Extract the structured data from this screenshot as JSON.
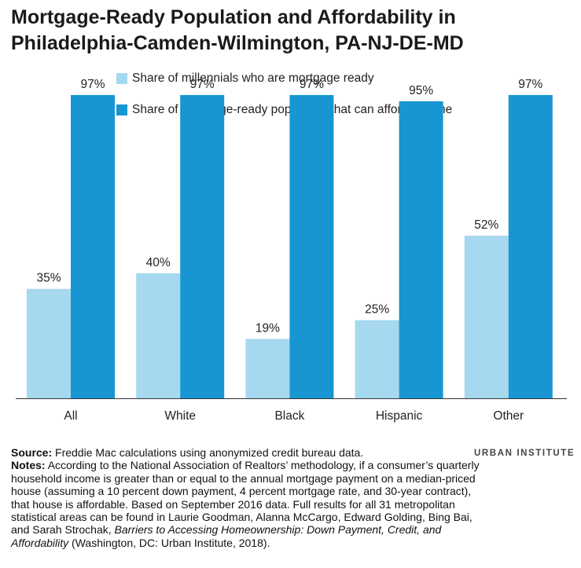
{
  "title_line1": "Mortgage-Ready Population and Affordability in",
  "title_line2": "Philadelphia-Camden-Wilmington, PA-NJ-DE-MD",
  "colors": {
    "series1": "#a6d8ef",
    "series2": "#1796d2",
    "axis": "#333333"
  },
  "chart_data": {
    "type": "bar",
    "categories": [
      "All",
      "White",
      "Black",
      "Hispanic",
      "Other"
    ],
    "series": [
      {
        "name": "Share of millennials who are mortgage ready",
        "values": [
          35,
          40,
          19,
          25,
          52
        ],
        "labels": [
          "35%",
          "40%",
          "19%",
          "25%",
          "52%"
        ]
      },
      {
        "name": "Share of mortgage-ready population that can afford a home",
        "values": [
          97,
          97,
          97,
          95,
          97
        ],
        "labels": [
          "97%",
          "97%",
          "97%",
          "95%",
          "97%"
        ]
      }
    ],
    "ylim": [
      0,
      100
    ],
    "grid": false,
    "legend_position": "top"
  },
  "source_label": "Source:",
  "source_text": "Freddie Mac calculations using anonymized credit bureau data.",
  "notes_label": "Notes:",
  "notes_text": "According to the National Association of Realtors’ methodology, if a consumer’s quarterly household income is greater than or equal to the annual mortgage payment on a median-priced house (assuming a 10 percent down payment, 4 percent mortgage rate, and 30-year contract), that house is affordable. Based on September 2016 data. Full results for all 31 metropolitan statistical areas can be found in Laurie Goodman, Alanna McCargo, Edward Golding, Bing Bai, and Sarah Strochak,",
  "notes_title": "Barriers to Accessing Homeownership: Down Payment, Credit, and Affordability",
  "notes_tail": "(Washington, DC: Urban Institute, 2018).",
  "brand": "URBAN INSTITUTE"
}
